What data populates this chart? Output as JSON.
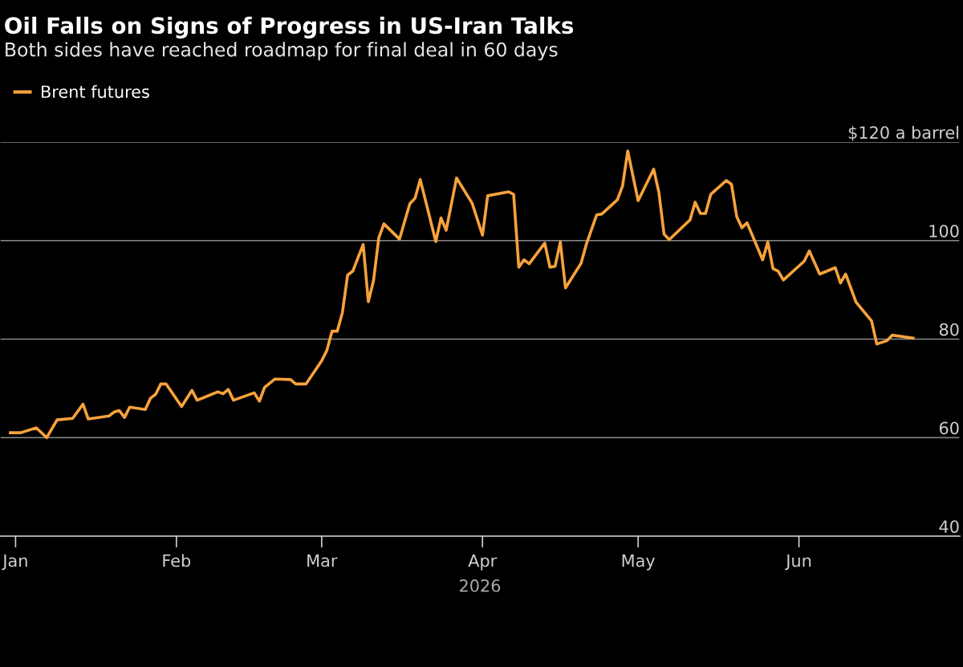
{
  "chart_data": {
    "type": "line",
    "title": "Oil Falls on Signs of Progress in US-Iran Talks",
    "subtitle": "Both sides have reached roadmap for final deal in 60 days",
    "xlabel": "2026",
    "x": [
      "2025-12-31",
      "2026-01-02",
      "2026-01-05",
      "2026-01-07",
      "2026-01-09",
      "2026-01-12",
      "2026-01-14",
      "2026-01-15",
      "2026-01-19",
      "2026-01-20",
      "2026-01-21",
      "2026-01-22",
      "2026-01-23",
      "2026-01-26",
      "2026-01-27",
      "2026-01-28",
      "2026-01-29",
      "2026-01-30",
      "2026-02-02",
      "2026-02-04",
      "2026-02-05",
      "2026-02-09",
      "2026-02-10",
      "2026-02-11",
      "2026-02-12",
      "2026-02-16",
      "2026-02-17",
      "2026-02-18",
      "2026-02-20",
      "2026-02-23",
      "2026-02-24",
      "2026-02-26",
      "2026-03-01",
      "2026-03-02",
      "2026-03-03",
      "2026-03-04",
      "2026-03-05",
      "2026-03-06",
      "2026-03-07",
      "2026-03-09",
      "2026-03-10",
      "2026-03-11",
      "2026-03-12",
      "2026-03-13",
      "2026-03-16",
      "2026-03-18",
      "2026-03-19",
      "2026-03-20",
      "2026-03-23",
      "2026-03-24",
      "2026-03-25",
      "2026-03-27",
      "2026-03-30",
      "2026-04-01",
      "2026-04-02",
      "2026-04-06",
      "2026-04-07",
      "2026-04-08",
      "2026-04-09",
      "2026-04-10",
      "2026-04-13",
      "2026-04-14",
      "2026-04-15",
      "2026-04-16",
      "2026-04-17",
      "2026-04-20",
      "2026-04-21",
      "2026-04-23",
      "2026-04-24",
      "2026-04-27",
      "2026-04-28",
      "2026-04-29",
      "2026-05-01",
      "2026-05-04",
      "2026-05-05",
      "2026-05-06",
      "2026-05-07",
      "2026-05-11",
      "2026-05-12",
      "2026-05-13",
      "2026-05-14",
      "2026-05-15",
      "2026-05-18",
      "2026-05-19",
      "2026-05-20",
      "2026-05-21",
      "2026-05-22",
      "2026-05-25",
      "2026-05-26",
      "2026-05-27",
      "2026-05-28",
      "2026-05-29",
      "2026-06-02",
      "2026-06-03",
      "2026-06-05",
      "2026-06-08",
      "2026-06-09",
      "2026-06-10",
      "2026-06-12",
      "2026-06-15",
      "2026-06-16",
      "2026-06-18",
      "2026-06-19",
      "2026-06-23"
    ],
    "series": [
      {
        "name": "Brent futures",
        "color": "#f7a23b",
        "values": [
          61.0,
          61.0,
          62.0,
          60.0,
          63.6,
          63.9,
          66.8,
          63.8,
          64.4,
          65.2,
          65.5,
          64.1,
          66.2,
          65.7,
          68.0,
          68.8,
          70.9,
          70.9,
          66.3,
          69.6,
          67.6,
          69.3,
          68.9,
          69.8,
          67.6,
          69.1,
          67.4,
          70.2,
          71.9,
          71.8,
          70.9,
          70.9,
          75.6,
          77.7,
          81.6,
          81.6,
          85.4,
          93.0,
          93.8,
          99.2,
          87.6,
          91.9,
          100.5,
          103.4,
          100.3,
          107.5,
          108.6,
          112.4,
          99.8,
          104.6,
          102.1,
          112.7,
          107.6,
          101.1,
          109.1,
          109.9,
          109.4,
          94.6,
          96.1,
          95.3,
          99.5,
          94.6,
          94.8,
          99.7,
          90.4,
          95.4,
          99.2,
          105.2,
          105.4,
          108.3,
          111.1,
          118.2,
          108.1,
          114.5,
          109.8,
          101.3,
          100.2,
          104.2,
          107.8,
          105.5,
          105.5,
          109.4,
          112.2,
          111.4,
          104.9,
          102.6,
          103.6,
          96.1,
          99.7,
          94.3,
          93.8,
          92.0,
          95.8,
          97.9,
          93.2,
          94.5,
          91.4,
          93.2,
          87.5,
          83.7,
          79.0,
          79.7,
          80.8,
          80.2
        ]
      }
    ],
    "xlim": [
      "2025-12-29",
      "2026-07-02"
    ],
    "xticks": [
      {
        "value": "2026-01-01",
        "label": "Jan"
      },
      {
        "value": "2026-02-01",
        "label": "Feb"
      },
      {
        "value": "2026-03-01",
        "label": "Mar"
      },
      {
        "value": "2026-04-01",
        "label": "Apr"
      },
      {
        "value": "2026-05-01",
        "label": "May"
      },
      {
        "value": "2026-06-01",
        "label": "Jun"
      }
    ],
    "ylim": [
      40,
      120
    ],
    "yticks": [
      40,
      60,
      80,
      100,
      {
        "value": 120,
        "label": "$120 a barrel"
      }
    ],
    "grid": "y",
    "legend": "top left",
    "marker": "none",
    "line_style": "solid"
  }
}
